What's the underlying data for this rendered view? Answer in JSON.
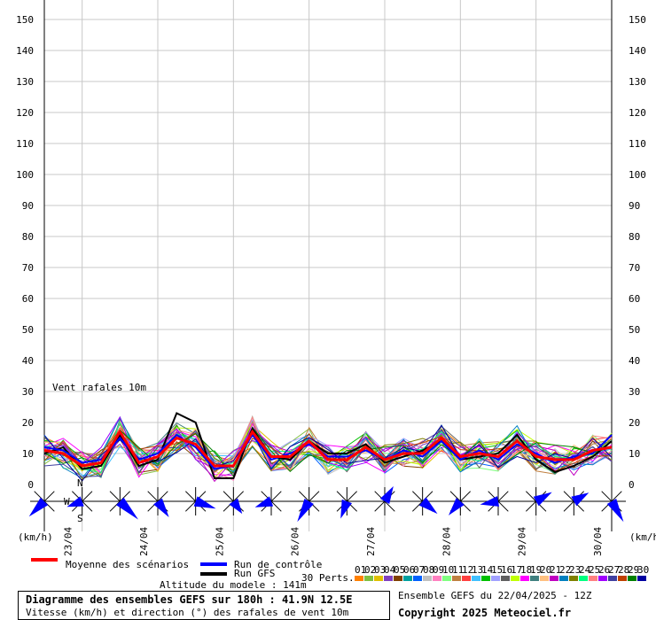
{
  "chart_data": {
    "type": "line",
    "title": "Diagramme des ensembles GEFS sur 180h : 41.9N 12.5E",
    "subtitle": "Vitesse (km/h) et direction (°) des rafales de vent 10m",
    "panel_label": "Vent rafales 10m",
    "ylabel_left": "(km/h)",
    "ylabel_right": "(km/h)",
    "ylim": [
      0,
      155
    ],
    "yticks": [
      0,
      10,
      20,
      30,
      40,
      50,
      60,
      70,
      80,
      90,
      100,
      110,
      120,
      130,
      140,
      150
    ],
    "x_hours": [
      0,
      6,
      12,
      18,
      24,
      30,
      36,
      42,
      48,
      54,
      60,
      66,
      72,
      78,
      84,
      90,
      96,
      102,
      108,
      114,
      120,
      126,
      132,
      138,
      144,
      150,
      156,
      162,
      168,
      174,
      180
    ],
    "date_labels": [
      "23/04",
      "24/04",
      "25/04",
      "26/04",
      "27/04",
      "28/04",
      "29/04",
      "30/04"
    ],
    "series": [
      {
        "name": "Moyenne des scénarios",
        "color": "#ff0000",
        "values": [
          11,
          10,
          6,
          7,
          17,
          7,
          9,
          15,
          13,
          6,
          6,
          17,
          9,
          9,
          14,
          8,
          8,
          12,
          8,
          10,
          10,
          15,
          9,
          10,
          9,
          14,
          9,
          8,
          8,
          11,
          12
        ]
      },
      {
        "name": "Run de contrôle",
        "color": "#0000ff",
        "values": [
          12,
          11,
          7,
          8,
          15,
          8,
          10,
          16,
          12,
          5,
          6,
          16,
          8,
          10,
          13,
          9,
          9,
          11,
          8,
          11,
          9,
          14,
          8,
          11,
          8,
          13,
          10,
          7,
          9,
          10,
          16
        ]
      },
      {
        "name": "Run GFS",
        "color": "#000000",
        "values": [
          10,
          12,
          5,
          6,
          16,
          6,
          8,
          23,
          20,
          2,
          2,
          18,
          9,
          8,
          14,
          10,
          10,
          13,
          7,
          9,
          11,
          14,
          8,
          9,
          10,
          16,
          8,
          4,
          6,
          9,
          14
        ]
      }
    ],
    "perturbations": {
      "label": "30 Perts.",
      "count": 30,
      "ids": [
        "01",
        "02",
        "03",
        "04",
        "05",
        "06",
        "07",
        "08",
        "09",
        "10",
        "11",
        "12",
        "13",
        "14",
        "15",
        "16",
        "17",
        "18",
        "19",
        "20",
        "21",
        "22",
        "23",
        "24",
        "25",
        "26",
        "27",
        "28",
        "29",
        "30"
      ],
      "colors": [
        "#ff8000",
        "#80c040",
        "#e0c000",
        "#8040c0",
        "#804000",
        "#00a0a0",
        "#0060ff",
        "#c0c0c0",
        "#ff80c0",
        "#80ff80",
        "#c08040",
        "#ff4040",
        "#40c0ff",
        "#00c000",
        "#a0a0ff",
        "#606060",
        "#c0ff00",
        "#ff00ff",
        "#408080",
        "#ffc080",
        "#c000c0",
        "#0080c0",
        "#808000",
        "#00ff80",
        "#ff8080",
        "#a000ff",
        "#4040a0",
        "#c04000",
        "#008000",
        "#0000a0"
      ]
    },
    "wind_directions_deg": [
      225,
      200,
      250,
      250,
      135,
      150,
      145,
      125,
      110,
      120,
      145,
      25,
      250,
      250,
      210,
      150,
      200,
      20,
      30,
      60,
      130,
      240,
      220,
      245,
      260,
      40,
      60,
      170,
      60,
      45,
      150
    ],
    "wind_speed": [
      12,
      11,
      7,
      8,
      16,
      8,
      10,
      16,
      12,
      5,
      6,
      16,
      8,
      10,
      14,
      9,
      9,
      12,
      8,
      11,
      10,
      14,
      9,
      10,
      9,
      14,
      9,
      8,
      8,
      10,
      14
    ]
  },
  "legend": {
    "mean": "Moyenne des scénarios",
    "control": "Run de contrôle",
    "gfs": "Run GFS",
    "altitude": "Altitude du modele : 141m",
    "perts": "30 Perts."
  },
  "compass": {
    "north": "N",
    "south": "S",
    "west": "W"
  },
  "footer": {
    "ensemble_date": "Ensemble GEFS du 22/04/2025 - 12Z",
    "copyright": "Copyright 2025 Meteociel.fr"
  },
  "colors": {
    "mean": "#ff0000",
    "control": "#0000ff",
    "gfs": "#000000",
    "rose": "#0000ff",
    "grid": "#c8c8c8"
  }
}
